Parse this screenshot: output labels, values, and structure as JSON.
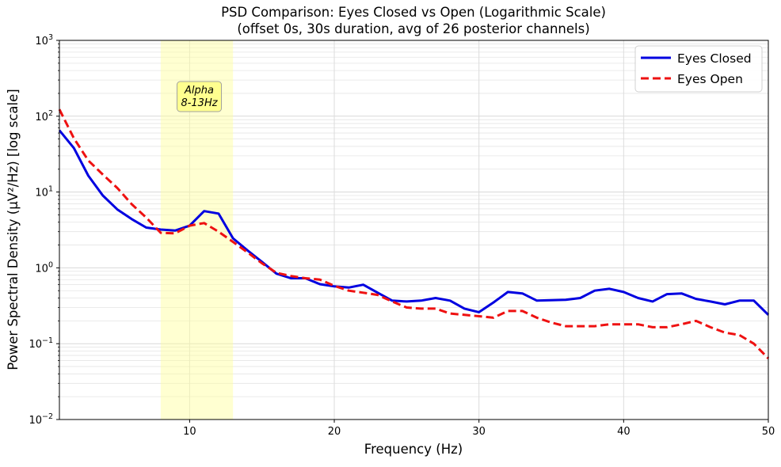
{
  "chart_data": {
    "type": "line",
    "title": "PSD Comparison: Eyes Closed vs Open (Logarithmic Scale)",
    "subtitle": "(offset 0s, 30s duration, avg of 26 posterior channels)",
    "xlabel": "Frequency (Hz)",
    "ylabel": "Power Spectral Density (µV²/Hz) [log scale]",
    "xlim": [
      1,
      50
    ],
    "ylim": [
      0.01,
      1000
    ],
    "yscale": "log",
    "grid": true,
    "legend_placement": "top-right",
    "x_ticks": [
      10,
      20,
      30,
      40,
      50
    ],
    "y_ticks": [
      {
        "value": 0.01,
        "base": "10",
        "exp": "−2"
      },
      {
        "value": 0.1,
        "base": "10",
        "exp": "−1"
      },
      {
        "value": 1,
        "base": "10",
        "exp": "0"
      },
      {
        "value": 10,
        "base": "10",
        "exp": "1"
      },
      {
        "value": 100,
        "base": "10",
        "exp": "2"
      },
      {
        "value": 1000,
        "base": "10",
        "exp": "3"
      }
    ],
    "band": {
      "from": 8,
      "to": 13,
      "label_line1": "Alpha",
      "label_line2": "8-13Hz",
      "color": "#ffff99"
    },
    "x": [
      1,
      2,
      3,
      4,
      5,
      6,
      7,
      8,
      9,
      10,
      11,
      12,
      13,
      14,
      15,
      16,
      17,
      18,
      19,
      20,
      21,
      22,
      23,
      24,
      25,
      26,
      27,
      28,
      29,
      30,
      31,
      32,
      33,
      34,
      35,
      36,
      37,
      38,
      39,
      40,
      41,
      42,
      43,
      44,
      45,
      46,
      47,
      48,
      49,
      50
    ],
    "series": [
      {
        "name": "Eyes Closed",
        "color": "#0000e0",
        "style": "solid",
        "values": [
          65,
          38,
          16.4,
          9,
          5.9,
          4.4,
          3.4,
          3.2,
          3.1,
          3.6,
          5.6,
          5.2,
          2.45,
          1.7,
          1.2,
          0.84,
          0.73,
          0.73,
          0.61,
          0.57,
          0.55,
          0.6,
          0.47,
          0.37,
          0.36,
          0.37,
          0.4,
          0.37,
          0.29,
          0.26,
          0.35,
          0.48,
          0.46,
          0.37,
          0.375,
          0.38,
          0.4,
          0.5,
          0.53,
          0.48,
          0.4,
          0.36,
          0.45,
          0.46,
          0.39,
          0.36,
          0.33,
          0.37,
          0.37,
          0.24
        ]
      },
      {
        "name": "Eyes Open",
        "color": "#ee1111",
        "style": "dashed",
        "values": [
          123,
          51,
          26,
          17,
          11.3,
          6.9,
          4.6,
          2.9,
          2.85,
          3.6,
          3.9,
          3.0,
          2.2,
          1.6,
          1.15,
          0.86,
          0.78,
          0.73,
          0.7,
          0.58,
          0.5,
          0.47,
          0.44,
          0.36,
          0.3,
          0.29,
          0.29,
          0.25,
          0.24,
          0.23,
          0.22,
          0.27,
          0.27,
          0.22,
          0.19,
          0.17,
          0.17,
          0.17,
          0.18,
          0.18,
          0.18,
          0.165,
          0.165,
          0.18,
          0.2,
          0.165,
          0.14,
          0.13,
          0.1,
          0.064
        ]
      }
    ]
  }
}
